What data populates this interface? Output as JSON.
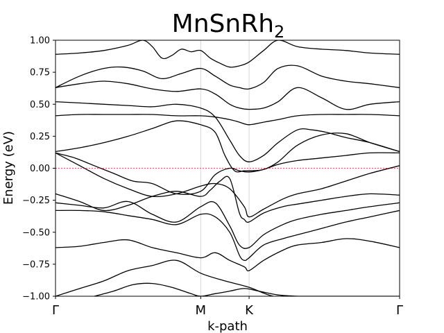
{
  "chart_data": {
    "type": "line",
    "title": "MnSnRh",
    "title_subscript": "2",
    "xlabel": "k-path",
    "ylabel": "Energy (eV)",
    "ylim": [
      -1.0,
      1.0
    ],
    "xlim": [
      0,
      7.11
    ],
    "yticks": [
      1.0,
      0.75,
      0.5,
      0.25,
      0.0,
      -0.25,
      -0.5,
      -0.75,
      -1.0
    ],
    "ytick_labels": [
      "1.00",
      "0.75",
      "0.50",
      "0.25",
      "0.00",
      "−0.25",
      "−0.50",
      "−0.75",
      "−1.00"
    ],
    "high_symmetry_points": [
      {
        "label": "Γ",
        "x": 0
      },
      {
        "label": "M",
        "x": 3.0
      },
      {
        "label": "K",
        "x": 4.0
      },
      {
        "label": "Γ",
        "x": 7.11
      }
    ],
    "fermi_level": 0.0,
    "fermi_color": "#d62728",
    "band_color": "#000000",
    "vline_color": "#cccccc",
    "bands": [
      {
        "x": [
          0,
          0.5,
          1.0,
          1.5,
          2.0,
          2.5,
          3.0,
          3.5,
          4.0,
          4.5,
          5.0,
          5.5,
          6.0,
          6.5,
          7.11
        ],
        "y": [
          -1.0,
          -0.94,
          -0.88,
          -0.8,
          -0.76,
          -0.72,
          -0.82,
          -0.88,
          -0.93,
          -1.0,
          -1.0,
          -1.0,
          -1.0,
          -1.0,
          -1.0
        ]
      },
      {
        "x": [
          0.8,
          1.2,
          1.6,
          2.0,
          2.4,
          2.8,
          3.0,
          3.3,
          3.6,
          3.9,
          4.2,
          4.6,
          5.0
        ],
        "y": [
          -1.0,
          -0.96,
          -0.91,
          -0.9,
          -0.93,
          -0.98,
          -1.0,
          -0.98,
          -0.96,
          -0.94,
          -0.96,
          -0.99,
          -1.0
        ]
      },
      {
        "x": [
          0,
          0.5,
          1.0,
          1.5,
          2.0,
          2.5,
          3.0,
          3.3,
          3.6,
          3.9,
          4.0,
          4.3,
          4.7,
          5.0,
          5.5,
          6.0,
          6.5,
          7.11
        ],
        "y": [
          -0.62,
          -0.61,
          -0.58,
          -0.56,
          -0.62,
          -0.66,
          -0.7,
          -0.66,
          -0.72,
          -0.77,
          -0.8,
          -0.72,
          -0.64,
          -0.6,
          -0.58,
          -0.55,
          -0.57,
          -0.62
        ]
      },
      {
        "x": [
          0,
          0.5,
          1.0,
          1.5,
          2.0,
          2.5,
          3.0,
          3.3,
          3.6,
          3.8,
          3.9,
          4.0,
          4.3,
          4.7,
          5.0,
          5.5,
          6.0,
          6.5,
          7.11
        ],
        "y": [
          -0.33,
          -0.33,
          -0.34,
          -0.37,
          -0.4,
          -0.44,
          -0.36,
          -0.38,
          -0.5,
          -0.68,
          -0.72,
          -0.7,
          -0.6,
          -0.55,
          -0.52,
          -0.47,
          -0.42,
          -0.38,
          -0.33
        ]
      },
      {
        "x": [
          0,
          0.5,
          1.0,
          1.5,
          2.0,
          2.5,
          3.0,
          3.3,
          3.6,
          3.8,
          4.0,
          4.3,
          4.7,
          5.0,
          5.5,
          6.0,
          6.5,
          7.11
        ],
        "y": [
          -0.27,
          -0.29,
          -0.31,
          -0.26,
          -0.36,
          -0.42,
          -0.3,
          -0.27,
          -0.45,
          -0.6,
          -0.62,
          -0.52,
          -0.44,
          -0.4,
          -0.36,
          -0.33,
          -0.3,
          -0.27
        ]
      },
      {
        "x": [
          0,
          0.5,
          1.0,
          1.5,
          2.0,
          2.5,
          3.0,
          3.2,
          3.4,
          3.6,
          3.8,
          3.9,
          4.0,
          4.3,
          4.7,
          5.0,
          5.5,
          6.0,
          6.5,
          7.11
        ],
        "y": [
          -0.2,
          -0.26,
          -0.33,
          -0.29,
          -0.22,
          -0.18,
          -0.22,
          -0.17,
          -0.1,
          -0.08,
          -0.35,
          -0.4,
          -0.42,
          -0.35,
          -0.3,
          -0.28,
          -0.25,
          -0.22,
          -0.2,
          -0.21
        ]
      },
      {
        "x": [
          0,
          0.5,
          1.0,
          1.5,
          2.0,
          2.5,
          3.0,
          3.3,
          3.6,
          3.9,
          4.0,
          4.3,
          4.7,
          5.0,
          5.5,
          6.0,
          6.5,
          7.11
        ],
        "y": [
          0.12,
          0.02,
          -0.08,
          -0.16,
          -0.22,
          -0.2,
          -0.14,
          -0.12,
          -0.16,
          -0.3,
          -0.38,
          -0.32,
          -0.24,
          -0.2,
          -0.16,
          -0.1,
          -0.04,
          0.02
        ]
      },
      {
        "x": [
          0,
          0.4,
          0.8,
          1.2,
          1.6,
          2.0,
          2.5,
          3.0,
          3.3,
          3.6,
          3.8,
          4.0,
          4.3,
          4.6,
          5.0,
          5.5,
          6.0,
          6.5,
          7.11
        ],
        "y": [
          0.12,
          0.08,
          0.02,
          -0.04,
          -0.1,
          -0.12,
          -0.2,
          -0.18,
          -0.05,
          0.0,
          -0.02,
          -0.03,
          -0.01,
          0.03,
          0.06,
          0.08,
          0.1,
          0.12,
          0.12
        ]
      },
      {
        "x": [
          0,
          0.5,
          1.0,
          1.5,
          2.0,
          2.5,
          3.0,
          3.3,
          3.5,
          3.7,
          3.9,
          4.0,
          4.3,
          4.6,
          5.0,
          5.5,
          6.0,
          6.5,
          7.11
        ],
        "y": [
          0.13,
          0.16,
          0.2,
          0.25,
          0.31,
          0.37,
          0.34,
          0.28,
          0.1,
          -0.02,
          -0.02,
          -0.02,
          -0.01,
          0.05,
          0.18,
          0.26,
          0.27,
          0.2,
          0.13
        ]
      },
      {
        "x": [
          0,
          0.5,
          1.0,
          1.5,
          2.0,
          2.5,
          3.0,
          3.3,
          3.6,
          3.8,
          4.0,
          4.3,
          4.6,
          5.0,
          5.5,
          6.0,
          6.5,
          7.11
        ],
        "y": [
          0.41,
          0.42,
          0.42,
          0.42,
          0.42,
          0.41,
          0.41,
          0.4,
          0.38,
          0.36,
          0.34,
          0.36,
          0.38,
          0.41,
          0.42,
          0.42,
          0.42,
          0.41
        ]
      },
      {
        "x": [
          0,
          0.5,
          1.0,
          1.5,
          2.0,
          2.5,
          3.0,
          3.3,
          3.6,
          3.8,
          4.0,
          4.3,
          4.6,
          5.0,
          5.3,
          5.6,
          6.0,
          6.5,
          7.11
        ],
        "y": [
          0.52,
          0.51,
          0.5,
          0.49,
          0.48,
          0.5,
          0.47,
          0.4,
          0.22,
          0.1,
          0.05,
          0.1,
          0.2,
          0.3,
          0.3,
          0.28,
          0.24,
          0.2,
          0.13
        ]
      },
      {
        "x": [
          0,
          0.5,
          1.0,
          1.5,
          2.0,
          2.5,
          3.0,
          3.3,
          3.6,
          3.8,
          4.0,
          4.3,
          4.6,
          5.0,
          5.5,
          6.0,
          6.5,
          7.11
        ],
        "y": [
          0.63,
          0.66,
          0.68,
          0.66,
          0.62,
          0.6,
          0.62,
          0.58,
          0.5,
          0.47,
          0.46,
          0.47,
          0.52,
          0.63,
          0.55,
          0.46,
          0.5,
          0.52
        ]
      },
      {
        "x": [
          0,
          0.5,
          1.0,
          1.4,
          1.8,
          2.2,
          2.6,
          3.0,
          3.3,
          3.6,
          3.8,
          4.0,
          4.3,
          4.6,
          5.0,
          5.5,
          6.0,
          6.5,
          7.11
        ],
        "y": [
          0.63,
          0.72,
          0.78,
          0.79,
          0.76,
          0.7,
          0.74,
          0.78,
          0.72,
          0.65,
          0.63,
          0.62,
          0.67,
          0.78,
          0.8,
          0.72,
          0.68,
          0.66,
          0.63
        ]
      },
      {
        "x": [
          0,
          0.5,
          1.0,
          1.5,
          1.8,
          2.0,
          2.2,
          2.4,
          2.6,
          2.8,
          3.0,
          3.2,
          3.4,
          3.6,
          3.8,
          4.0,
          4.3,
          4.6,
          5.0,
          5.5,
          6.0,
          6.5,
          7.11
        ],
        "y": [
          0.89,
          0.9,
          0.92,
          0.96,
          1.0,
          0.95,
          0.86,
          0.88,
          0.93,
          0.91,
          0.92,
          0.86,
          0.82,
          0.79,
          0.8,
          0.83,
          0.92,
          1.0,
          0.95,
          0.93,
          0.92,
          0.9,
          0.89
        ]
      }
    ]
  }
}
